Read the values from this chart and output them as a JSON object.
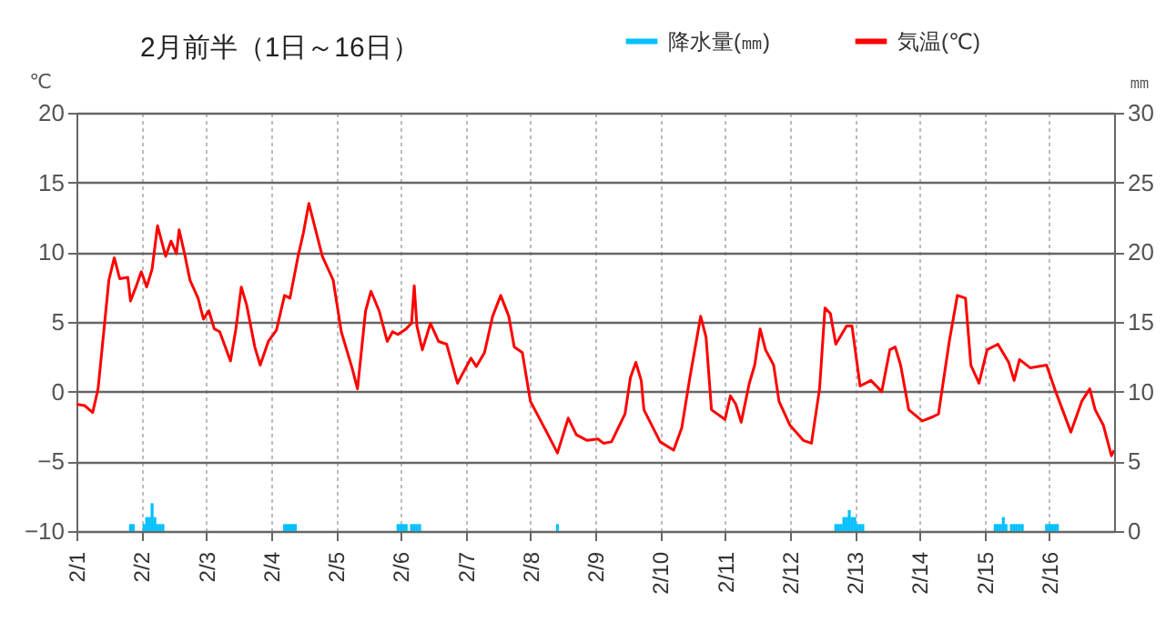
{
  "chart_data": {
    "type": "line",
    "title": "2月前半（1日～16日）",
    "ylabel": "℃",
    "y2label": "㎜",
    "xlim": [
      "--02-01",
      "--02-17"
    ],
    "xticks": [
      {
        "value": "--02-01",
        "label": "2/1"
      },
      {
        "value": "--02-02",
        "label": "2/2"
      },
      {
        "value": "--02-03",
        "label": "2/3"
      },
      {
        "value": "--02-04",
        "label": "2/4"
      },
      {
        "value": "--02-05",
        "label": "2/5"
      },
      {
        "value": "--02-06",
        "label": "2/6"
      },
      {
        "value": "--02-07",
        "label": "2/7"
      },
      {
        "value": "--02-08",
        "label": "2/8"
      },
      {
        "value": "--02-09",
        "label": "2/9"
      },
      {
        "value": "--02-10",
        "label": "2/10"
      },
      {
        "value": "--02-11",
        "label": "2/11"
      },
      {
        "value": "--02-12",
        "label": "2/12"
      },
      {
        "value": "--02-13",
        "label": "2/13"
      },
      {
        "value": "--02-14",
        "label": "2/14"
      },
      {
        "value": "--02-15",
        "label": "2/15"
      },
      {
        "value": "--02-16",
        "label": "2/16"
      }
    ],
    "ylim": [
      -10,
      20
    ],
    "yticks": [
      -10,
      -5,
      0,
      5,
      10,
      15,
      20
    ],
    "y2lim": [
      0,
      30
    ],
    "y2ticks": [
      0,
      5,
      10,
      15,
      20,
      25,
      30
    ],
    "grid": true,
    "legend": "top right",
    "series": [
      {
        "name": "降水量(㎜)",
        "type": "bar",
        "axis": "y2",
        "color": "#00c0ff",
        "x": [
          "--02-01T20:00",
          "--02-01T21:00",
          "--02-02T01:00",
          "--02-02T02:00",
          "--02-02T03:00",
          "--02-02T04:00",
          "--02-02T05:00",
          "--02-02T06:00",
          "--02-02T07:00",
          "--02-02T08:00",
          "--02-04T05:00",
          "--02-04T06:00",
          "--02-04T07:00",
          "--02-04T08:00",
          "--02-04T09:00",
          "--02-05T23:00",
          "--02-06T00:00",
          "--02-06T01:00",
          "--02-06T02:00",
          "--02-06T04:00",
          "--02-06T05:00",
          "--02-06T06:00",
          "--02-06T07:00",
          "--02-08T10:00",
          "--02-12T17:00",
          "--02-12T18:00",
          "--02-12T19:00",
          "--02-12T20:00",
          "--02-12T21:00",
          "--02-12T22:00",
          "--02-12T23:00",
          "--02-13T00:00",
          "--02-13T01:00",
          "--02-13T02:00",
          "--02-13T03:00",
          "--02-15T04:00",
          "--02-15T05:00",
          "--02-15T06:00",
          "--02-15T07:00",
          "--02-15T08:00",
          "--02-15T10:00",
          "--02-15T11:00",
          "--02-15T12:00",
          "--02-15T13:00",
          "--02-15T14:00",
          "--02-15T23:00",
          "--02-16T00:00",
          "--02-16T01:00",
          "--02-16T02:00",
          "--02-16T03:00"
        ],
        "values": [
          0.5,
          0.5,
          0.5,
          1.0,
          1.0,
          2.0,
          1.0,
          0.5,
          0.5,
          0.5,
          0.5,
          0.5,
          0.5,
          0.5,
          0.5,
          0.5,
          0.5,
          0.5,
          0.5,
          0.5,
          0.5,
          0.5,
          0.5,
          0.5,
          0.5,
          0.5,
          0.5,
          1.0,
          1.0,
          1.5,
          1.0,
          1.0,
          0.5,
          0.5,
          0.5,
          0.5,
          0.5,
          0.5,
          1.0,
          0.5,
          0.5,
          0.5,
          0.5,
          0.5,
          0.5,
          0.5,
          0.5,
          0.5,
          0.5,
          0.5
        ]
      },
      {
        "name": "気温(℃)",
        "color": "#ff0000",
        "x": [
          "--02-01T00:00",
          "--02-01T03:00",
          "--02-01T06:00",
          "--02-01T08:00",
          "--02-01T10:00",
          "--02-01T12:00",
          "--02-01T14:00",
          "--02-01T16:00",
          "--02-01T19:00",
          "--02-01T20:00",
          "--02-01T22:00",
          "--02-02T00:00",
          "--02-02T02:00",
          "--02-02T04:00",
          "--02-02T06:00",
          "--02-02T09:00",
          "--02-02T11:00",
          "--02-02T13:00",
          "--02-02T14:00",
          "--02-02T16:00",
          "--02-02T18:00",
          "--02-02T21:00",
          "--02-02T23:00",
          "--02-03T01:00",
          "--02-03T03:00",
          "--02-03T05:00",
          "--02-03T09:00",
          "--02-03T11:00",
          "--02-03T13:00",
          "--02-03T15:00",
          "--02-03T18:00",
          "--02-03T20:00",
          "--02-03T23:00",
          "--02-04T02:00",
          "--02-04T05:00",
          "--02-04T07:00",
          "--02-04T10:00",
          "--02-04T12:00",
          "--02-04T14:00",
          "--02-04T19:00",
          "--02-04T23:00",
          "--02-05T02:00",
          "--02-05T06:00",
          "--02-05T08:00",
          "--02-05T11:00",
          "--02-05T13:00",
          "--02-05T16:00",
          "--02-05T19:00",
          "--02-05T21:00",
          "--02-05T23:00",
          "--02-06T02:00",
          "--02-06T04:00",
          "--02-06T05:00",
          "--02-06T06:00",
          "--02-06T08:00",
          "--02-06T11:00",
          "--02-06T14:00",
          "--02-06T17:00",
          "--02-06T21:00",
          "--02-07T02:00",
          "--02-07T04:00",
          "--02-07T07:00",
          "--02-07T10:00",
          "--02-07T13:00",
          "--02-07T16:00",
          "--02-07T18:00",
          "--02-07T21:00",
          "--02-08T00:00",
          "--02-08T06:00",
          "--02-08T10:00",
          "--02-08T14:00",
          "--02-08T17:00",
          "--02-08T21:00",
          "--02-09T01:00",
          "--02-09T03:00",
          "--02-09T06:00",
          "--02-09T11:00",
          "--02-09T13:00",
          "--02-09T15:00",
          "--02-09T17:00",
          "--02-09T18:00",
          "--02-10T00:00",
          "--02-10T05:00",
          "--02-10T08:00",
          "--02-10T11:00",
          "--02-10T15:00",
          "--02-10T17:00",
          "--02-10T19:00",
          "--02-11T00:00",
          "--02-11T02:00",
          "--02-11T04:00",
          "--02-11T06:00",
          "--02-11T09:00",
          "--02-11T11:00",
          "--02-11T13:00",
          "--02-11T15:00",
          "--02-11T18:00",
          "--02-11T20:00",
          "--02-12T00:00",
          "--02-12T05:00",
          "--02-12T08:00",
          "--02-12T11:00",
          "--02-12T13:00",
          "--02-12T15:00",
          "--02-12T17:00",
          "--02-12T21:00",
          "--02-12T23:00",
          "--02-13T02:00",
          "--02-13T06:00",
          "--02-13T10:00",
          "--02-13T13:00",
          "--02-13T15:00",
          "--02-13T17:00",
          "--02-13T20:00",
          "--02-14T01:00",
          "--02-14T05:00",
          "--02-14T07:00",
          "--02-14T11:00",
          "--02-14T14:00",
          "--02-14T17:00",
          "--02-14T19:00",
          "--02-14T22:00",
          "--02-15T01:00",
          "--02-15T05:00",
          "--02-15T09:00",
          "--02-15T11:00",
          "--02-15T13:00",
          "--02-15T17:00",
          "--02-15T23:00",
          "--02-16T02:00",
          "--02-16T08:00",
          "--02-16T12:00",
          "--02-16T15:00",
          "--02-16T17:00",
          "--02-16T20:00",
          "--02-16T23:00",
          "--02-17T00:00"
        ],
        "values": [
          -0.9,
          -1.0,
          -1.5,
          0.2,
          4.1,
          8.0,
          9.6,
          8.1,
          8.2,
          6.5,
          7.5,
          8.6,
          7.5,
          8.8,
          11.9,
          9.7,
          10.8,
          9.9,
          11.6,
          9.9,
          8.0,
          6.7,
          5.2,
          5.8,
          4.5,
          4.3,
          2.2,
          4.5,
          7.5,
          6.2,
          3.2,
          1.9,
          3.6,
          4.4,
          6.9,
          6.7,
          9.7,
          11.4,
          13.5,
          9.7,
          8.0,
          4.3,
          1.7,
          0.2,
          5.8,
          7.2,
          5.8,
          3.6,
          4.3,
          4.1,
          4.5,
          4.9,
          7.6,
          4.7,
          3.0,
          4.9,
          3.6,
          3.4,
          0.6,
          2.4,
          1.8,
          2.8,
          5.4,
          6.9,
          5.4,
          3.2,
          2.8,
          -0.7,
          -2.9,
          -4.4,
          -1.9,
          -3.1,
          -3.5,
          -3.4,
          -3.7,
          -3.6,
          -1.6,
          1.0,
          2.1,
          0.8,
          -1.3,
          -3.6,
          -4.2,
          -2.6,
          1.0,
          5.4,
          3.9,
          -1.3,
          -2.0,
          -0.3,
          -0.9,
          -2.2,
          0.6,
          1.9,
          4.5,
          3.0,
          1.9,
          -0.7,
          -2.4,
          -3.5,
          -3.7,
          0.2,
          6.0,
          5.6,
          3.4,
          4.7,
          4.7,
          0.4,
          0.8,
          0.0,
          3.0,
          3.2,
          1.9,
          -1.3,
          -2.1,
          -1.8,
          -1.6,
          3.6,
          6.9,
          6.7,
          1.9,
          0.6,
          3.0,
          3.4,
          2.1,
          0.8,
          2.3,
          1.7,
          1.9,
          0.2,
          -2.9,
          -0.7,
          0.2,
          -1.3,
          -2.4,
          -4.6,
          -4.2
        ]
      }
    ]
  }
}
